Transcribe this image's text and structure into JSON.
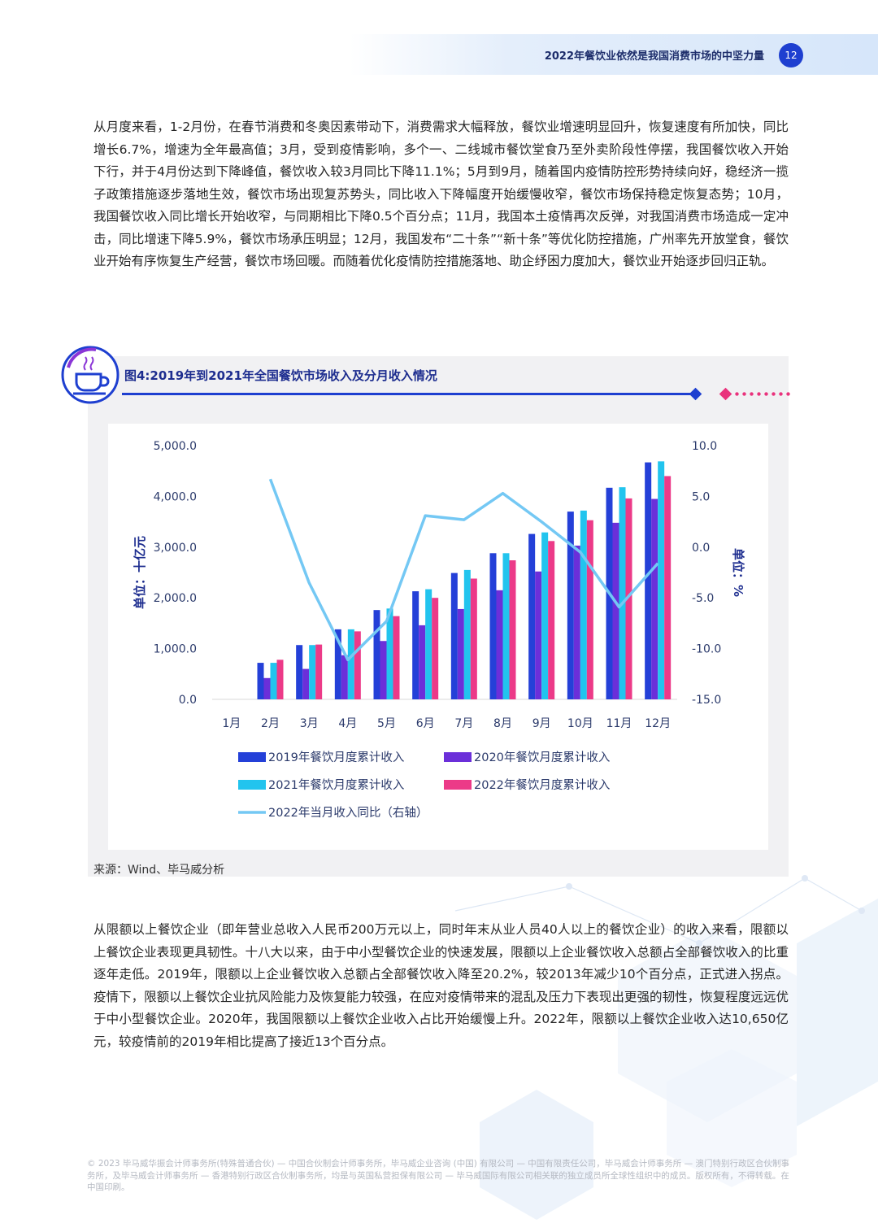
{
  "header": {
    "title": "2022年餐饮业依然是我国消费市场的中坚力量",
    "page_number": "12"
  },
  "paragraph1": "从月度来看，1-2月份，在春节消费和冬奥因素带动下，消费需求大幅释放，餐饮业增速明显回升，恢复速度有所加快，同比增长6.7%，增速为全年最高值；3月，受到疫情影响，多个一、二线城市餐饮堂食乃至外卖阶段性停摆，我国餐饮收入开始下行，并于4月份达到下降峰值，餐饮收入较3月同比下降11.1%；5月到9月，随着国内疫情防控形势持续向好，稳经济一揽子政策措施逐步落地生效，餐饮市场出现复苏势头，同比收入下降幅度开始缓慢收窄，餐饮市场保持稳定恢复态势；10月，我国餐饮收入同比增长开始收窄，与同期相比下降0.5个百分点；11月，我国本土疫情再次反弹，对我国消费市场造成一定冲击，同比增速下降5.9%，餐饮市场承压明显；12月，我国发布“二十条”“新十条”等优化防控措施，广州率先开放堂食，餐饮业开始有序恢复生产经营，餐饮市场回暖。而随着优化疫情防控措施落地、助企纾困力度加大，餐饮业开始逐步回归正轨。",
  "figure": {
    "title": "图4:2019年到2021年全国餐饮市场收入及分月收入情况",
    "source": "来源：Wind、毕马威分析"
  },
  "chart_data": {
    "type": "bar",
    "categories": [
      "1月",
      "2月",
      "3月",
      "4月",
      "5月",
      "6月",
      "7月",
      "8月",
      "9月",
      "10月",
      "11月",
      "12月"
    ],
    "ylabel": "单位：十亿元",
    "y2label": "单位：%",
    "ylim": [
      0,
      5000
    ],
    "y2lim": [
      -15,
      10
    ],
    "yticks": [
      "0.0",
      "1,000.0",
      "2,000.0",
      "3,000.0",
      "4,000.0",
      "5,000.0"
    ],
    "y2ticks": [
      "-15.0",
      "-10.0",
      "-5.0",
      "0.0",
      "5.0",
      "10.0"
    ],
    "series": [
      {
        "name": "2019年餐饮月度累计收入",
        "type": "bar",
        "color": "#2440d8",
        "values": [
          null,
          720,
          1070,
          1380,
          1760,
          2130,
          2490,
          2880,
          3260,
          3700,
          4170,
          4670
        ]
      },
      {
        "name": "2020年餐饮月度累计收入",
        "type": "bar",
        "color": "#6b2fd9",
        "values": [
          null,
          420,
          600,
          870,
          1150,
          1460,
          1780,
          2150,
          2520,
          3030,
          3480,
          3950
        ]
      },
      {
        "name": "2021年餐饮月度累计收入",
        "type": "bar",
        "color": "#22c4ee",
        "values": [
          null,
          720,
          1070,
          1380,
          1790,
          2170,
          2550,
          2880,
          3290,
          3720,
          4180,
          4690
        ]
      },
      {
        "name": "2022年餐饮月度累计收入",
        "type": "bar",
        "color": "#ec3a88",
        "values": [
          null,
          780,
          1080,
          1340,
          1640,
          2000,
          2380,
          2740,
          3120,
          3530,
          3960,
          4400
        ]
      },
      {
        "name": "2022年当月收入同比（右轴）",
        "type": "line",
        "axis": "right",
        "color": "#74c8f4",
        "values": [
          null,
          6.7,
          -3.5,
          -11.1,
          -7.3,
          3.1,
          2.7,
          5.3,
          2.5,
          -0.5,
          -5.9,
          -1.6
        ]
      }
    ],
    "legend_placement": "bottom",
    "grid": false
  },
  "paragraph2": "从限额以上餐饮企业（即年营业总收入人民币200万元以上，同时年末从业人员40人以上的餐饮企业）的收入来看，限额以上餐饮企业表现更具韧性。十八大以来，由于中小型餐饮企业的快速发展，限额以上企业餐饮收入总额占全部餐饮收入的比重逐年走低。2019年，限额以上企业餐饮收入总额占全部餐饮收入降至20.2%，较2013年减少10个百分点，正式进入拐点。疫情下，限额以上餐饮企业抗风险能力及恢复能力较强，在应对疫情带来的混乱及压力下表现出更强的韧性，恢复程度远远优于中小型餐饮企业。2020年，我国限额以上餐饮企业收入占比开始缓慢上升。2022年，限额以上餐饮企业收入达10,650亿元，较疫情前的2019年相比提高了接近13个百分点。",
  "footer": "© 2023 毕马威华振会计师事务所(特殊普通合伙) — 中国合伙制会计师事务所，毕马威企业咨询 (中国) 有限公司 — 中国有限责任公司，毕马威会计师事务所 — 澳门特别行政区合伙制事务所，及毕马威会计师事务所 — 香港特别行政区合伙制事务所，均是与英国私营担保有限公司 — 毕马威国际有限公司相关联的独立成员所全球性组织中的成员。版权所有，不得转载。在中国印刷。"
}
